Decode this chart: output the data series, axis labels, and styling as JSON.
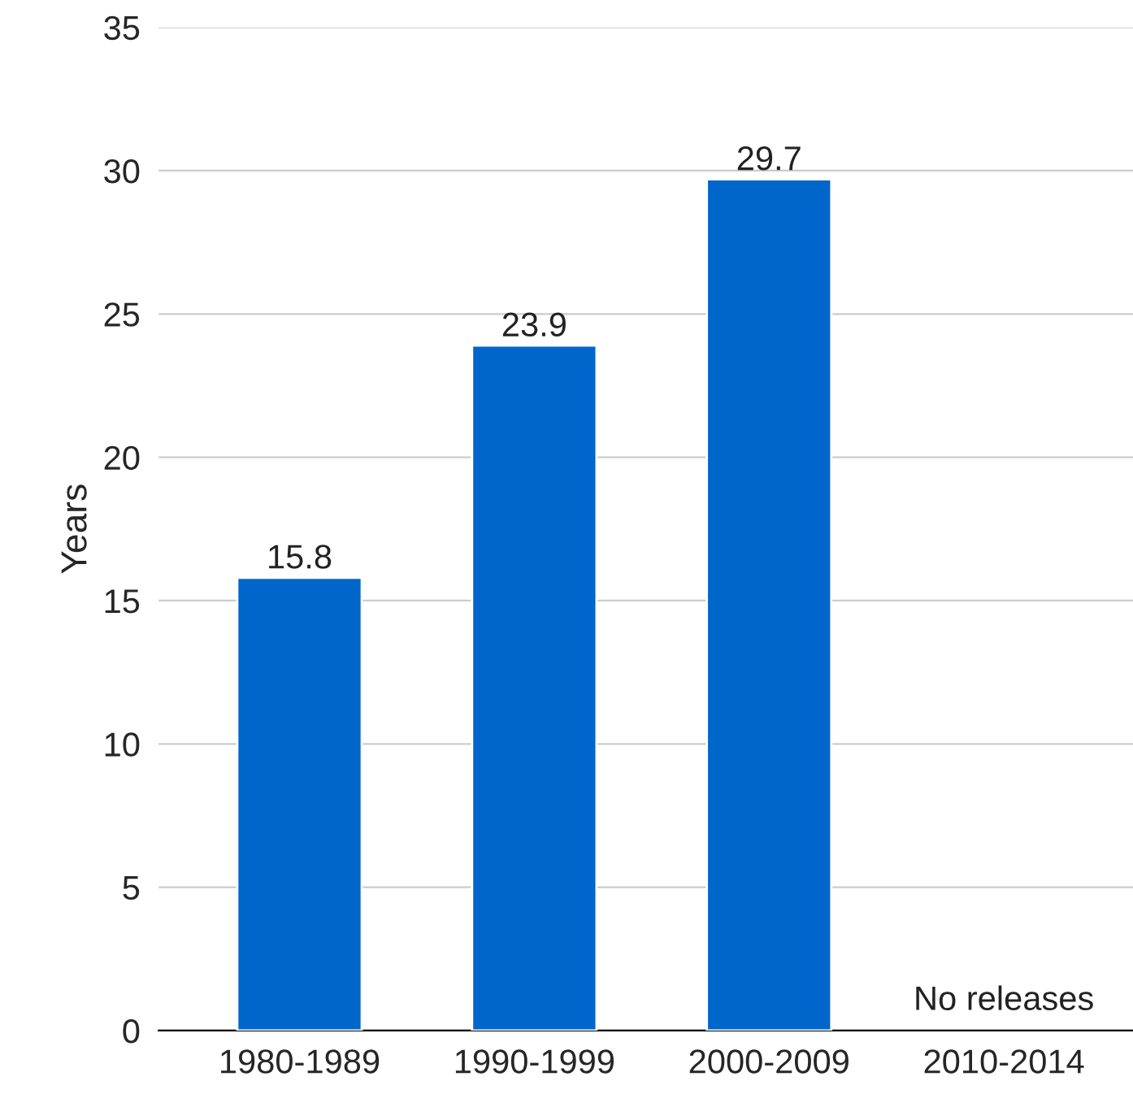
{
  "chart_data": {
    "type": "bar",
    "ylabel": "Years",
    "categories": [
      "1980-1989",
      "1990-1999",
      "2000-2009",
      "2010-2014"
    ],
    "values": [
      15.8,
      23.9,
      29.7,
      null
    ],
    "color": "#0066cc",
    "ylim": [
      0,
      35
    ],
    "yticks": [
      0,
      5,
      10,
      15,
      20,
      25,
      30,
      35
    ],
    "grid": "y",
    "data_labels": true,
    "annotations": [
      "No releases"
    ]
  }
}
